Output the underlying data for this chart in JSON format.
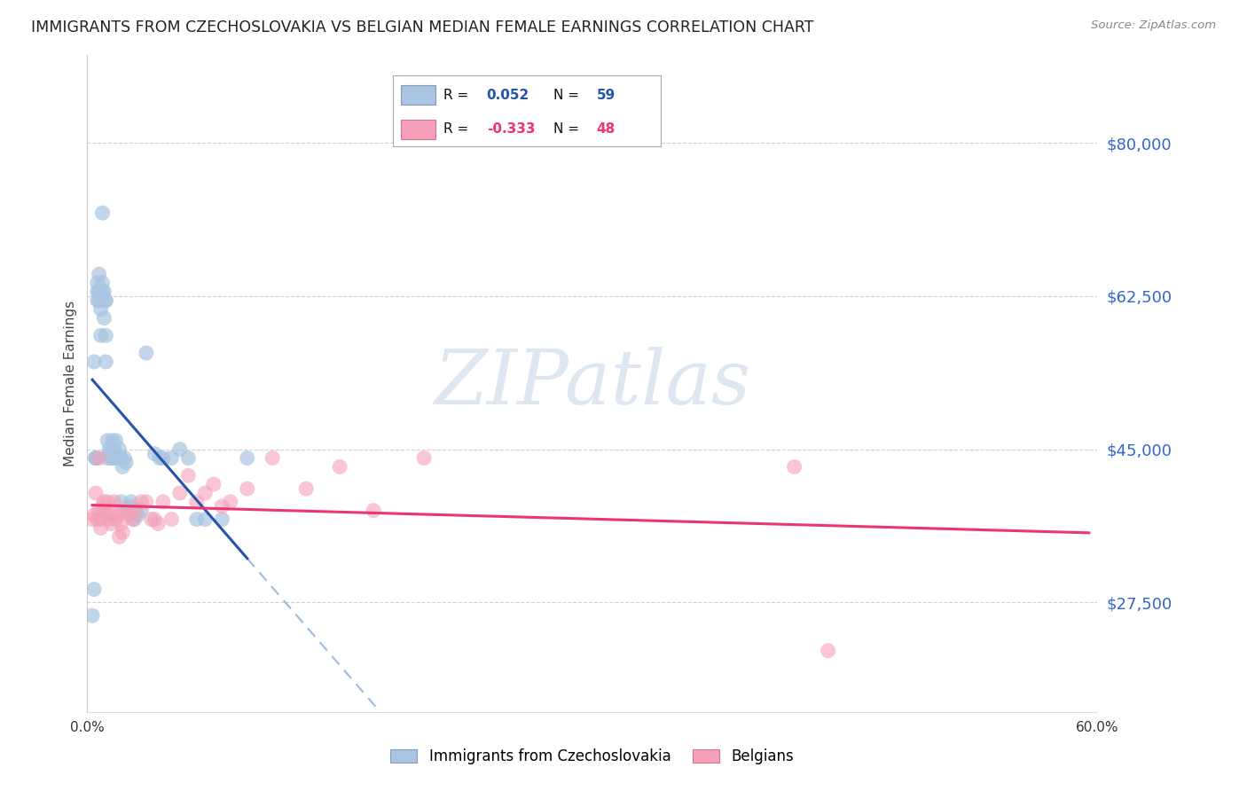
{
  "title": "IMMIGRANTS FROM CZECHOSLOVAKIA VS BELGIAN MEDIAN FEMALE EARNINGS CORRELATION CHART",
  "source": "Source: ZipAtlas.com",
  "ylabel": "Median Female Earnings",
  "xlim": [
    0.0,
    0.6
  ],
  "ylim": [
    15000,
    90000
  ],
  "yticks": [
    27500,
    45000,
    62500,
    80000
  ],
  "ytick_labels": [
    "$27,500",
    "$45,000",
    "$62,500",
    "$80,000"
  ],
  "xticks": [
    0.0,
    0.1,
    0.2,
    0.3,
    0.4,
    0.5,
    0.6
  ],
  "xtick_labels": [
    "0.0%",
    "",
    "",
    "",
    "",
    "",
    "60.0%"
  ],
  "blue_color": "#a8c4e0",
  "pink_color": "#f4a0b8",
  "blue_line_color": "#2255aa",
  "pink_line_color": "#ee3377",
  "dashed_line_color": "#99bbdd",
  "background_color": "#ffffff",
  "grid_color": "#cccccc",
  "title_color": "#222222",
  "axis_label_color": "#444444",
  "ytick_color": "#3366cc",
  "watermark_text": "ZIPatlas",
  "watermark_color": "#c8d8e8",
  "legend_box_edge": "#aaaaaa",
  "blue_scatter_x": [
    0.003,
    0.004,
    0.004,
    0.005,
    0.005,
    0.005,
    0.006,
    0.006,
    0.006,
    0.007,
    0.007,
    0.007,
    0.007,
    0.008,
    0.008,
    0.008,
    0.009,
    0.009,
    0.009,
    0.01,
    0.01,
    0.011,
    0.011,
    0.011,
    0.011,
    0.012,
    0.012,
    0.013,
    0.013,
    0.014,
    0.015,
    0.015,
    0.016,
    0.016,
    0.017,
    0.018,
    0.019,
    0.02,
    0.02,
    0.021,
    0.022,
    0.023,
    0.024,
    0.025,
    0.026,
    0.028,
    0.03,
    0.032,
    0.035,
    0.04,
    0.043,
    0.045,
    0.05,
    0.055,
    0.06,
    0.065,
    0.07,
    0.08,
    0.095
  ],
  "blue_scatter_y": [
    26000,
    29000,
    55000,
    44000,
    44000,
    44000,
    63000,
    62000,
    64000,
    63000,
    65000,
    63000,
    62000,
    62500,
    61000,
    58000,
    63000,
    64000,
    72000,
    63000,
    60000,
    62000,
    55000,
    58000,
    62000,
    46000,
    44000,
    45000,
    44500,
    44000,
    46000,
    44000,
    44000,
    45000,
    46000,
    44000,
    45000,
    44000,
    39000,
    43000,
    44000,
    43500,
    38000,
    38500,
    39000,
    37000,
    37500,
    38000,
    56000,
    44500,
    44000,
    44000,
    44000,
    45000,
    44000,
    37000,
    37000,
    37000,
    44000
  ],
  "pink_scatter_x": [
    0.003,
    0.004,
    0.005,
    0.006,
    0.007,
    0.007,
    0.008,
    0.008,
    0.009,
    0.01,
    0.01,
    0.011,
    0.012,
    0.013,
    0.014,
    0.015,
    0.016,
    0.017,
    0.018,
    0.019,
    0.02,
    0.021,
    0.022,
    0.025,
    0.027,
    0.029,
    0.032,
    0.035,
    0.038,
    0.04,
    0.042,
    0.045,
    0.05,
    0.055,
    0.06,
    0.065,
    0.07,
    0.075,
    0.08,
    0.085,
    0.095,
    0.11,
    0.13,
    0.15,
    0.17,
    0.2,
    0.42,
    0.44
  ],
  "pink_scatter_y": [
    37000,
    37500,
    40000,
    37000,
    38000,
    44000,
    37000,
    36000,
    38500,
    38000,
    39000,
    37500,
    39000,
    37000,
    36500,
    37500,
    39000,
    37000,
    37500,
    35000,
    36500,
    35500,
    38000,
    37500,
    37000,
    38000,
    39000,
    39000,
    37000,
    37000,
    36500,
    39000,
    37000,
    40000,
    42000,
    39000,
    40000,
    41000,
    38500,
    39000,
    40500,
    44000,
    40500,
    43000,
    38000,
    44000,
    43000,
    22000
  ],
  "blue_line_x_solid_start": 0.003,
  "blue_line_x_solid_end": 0.095,
  "blue_line_x_dash_end": 0.595,
  "pink_line_x_start": 0.003,
  "pink_line_x_end": 0.595
}
